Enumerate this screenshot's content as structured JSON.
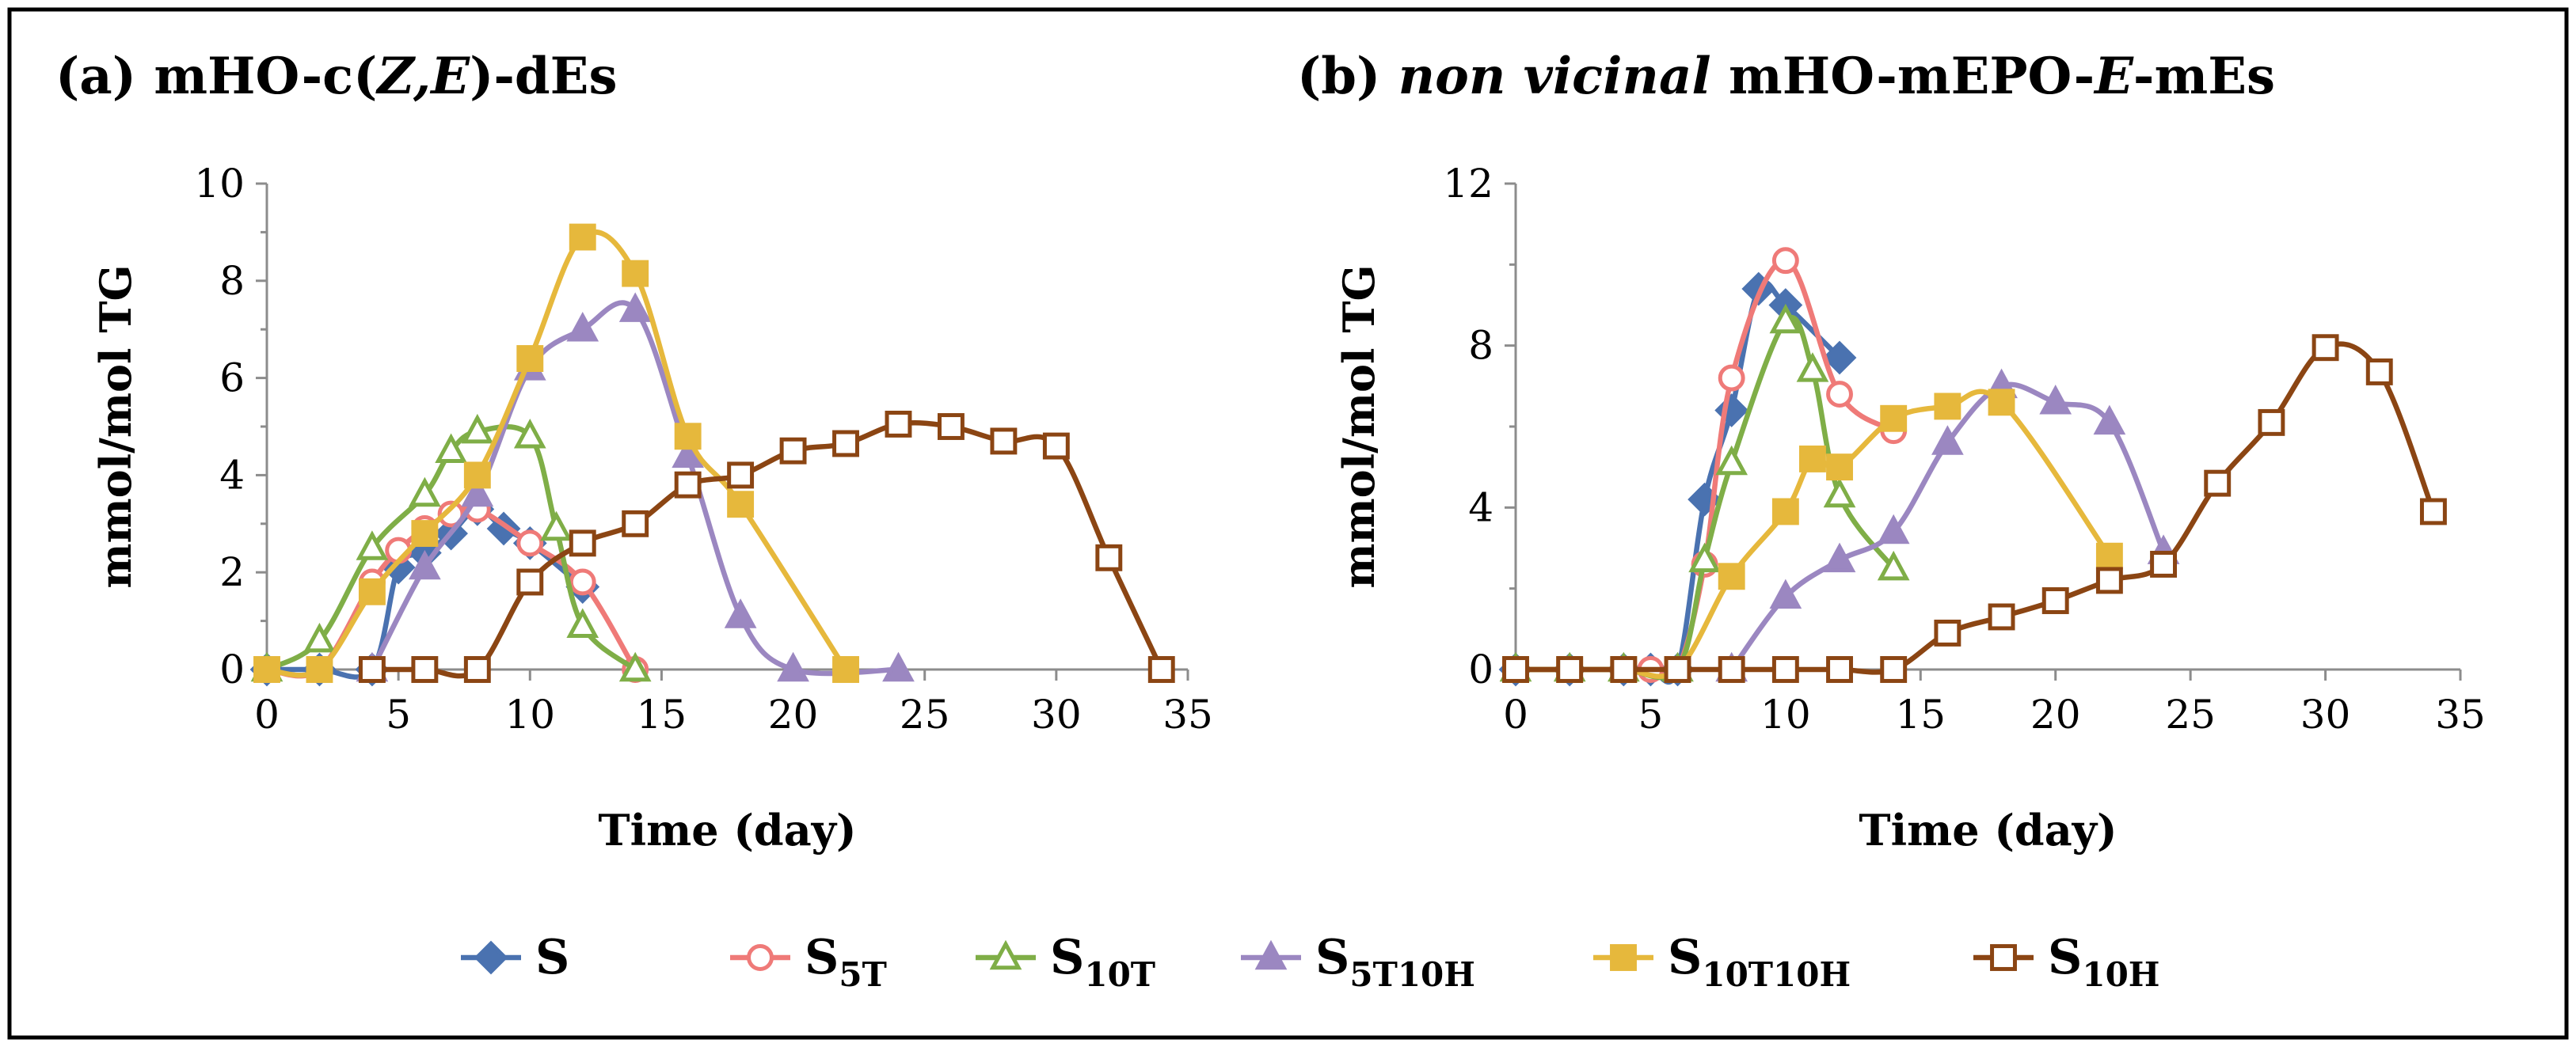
{
  "chart_data": [
    {
      "type": "line",
      "id": "a",
      "title_parts": [
        {
          "text": "(a) mHO-c(",
          "italic": false
        },
        {
          "text": "Z,E",
          "italic": true
        },
        {
          "text": ")-dEs",
          "italic": false
        }
      ],
      "xlabel": "Time (day)",
      "ylabel": "mmol/mol TG",
      "xlim": [
        0,
        35
      ],
      "ylim": [
        0,
        10
      ],
      "xticks": [
        0,
        5,
        10,
        15,
        20,
        25,
        30,
        35
      ],
      "yticks": [
        0,
        2,
        4,
        6,
        8,
        10
      ],
      "series": [
        {
          "key": "S",
          "x": [
            0,
            2,
            4,
            5,
            6,
            7,
            8,
            9,
            10,
            12
          ],
          "y": [
            0,
            0,
            0,
            2.1,
            2.4,
            2.8,
            3.3,
            2.9,
            2.6,
            1.7
          ]
        },
        {
          "key": "S5T",
          "x": [
            0,
            2,
            4,
            5,
            6,
            7,
            8,
            10,
            12,
            14
          ],
          "y": [
            0,
            0,
            1.8,
            2.45,
            2.9,
            3.2,
            3.3,
            2.6,
            1.8,
            0
          ]
        },
        {
          "key": "S10T",
          "x": [
            0,
            2,
            4,
            6,
            7,
            8,
            10,
            11,
            12,
            14
          ],
          "y": [
            0,
            0.6,
            2.5,
            3.6,
            4.5,
            4.9,
            4.8,
            2.9,
            0.9,
            0
          ]
        },
        {
          "key": "S5T10H",
          "x": [
            4,
            6,
            8,
            10,
            12,
            14,
            16,
            18,
            20,
            24
          ],
          "y": [
            0,
            2.1,
            3.6,
            6.2,
            7.0,
            7.4,
            4.4,
            1.1,
            0,
            0
          ]
        },
        {
          "key": "S10T10H",
          "x": [
            0,
            2,
            4,
            6,
            8,
            10,
            12,
            14,
            16,
            18,
            22
          ],
          "y": [
            0,
            0,
            1.6,
            2.8,
            4.0,
            6.4,
            8.9,
            8.15,
            4.8,
            3.4,
            0
          ]
        },
        {
          "key": "S10H",
          "x": [
            4,
            6,
            8,
            10,
            12,
            14,
            16,
            18,
            20,
            22,
            24,
            26,
            28,
            30,
            32,
            34
          ],
          "y": [
            0,
            0,
            0,
            1.8,
            2.6,
            3.0,
            3.8,
            4.0,
            4.5,
            4.65,
            5.05,
            5.0,
            4.7,
            4.6,
            2.3,
            0
          ]
        }
      ]
    },
    {
      "type": "line",
      "id": "b",
      "title_parts": [
        {
          "text": "(b) ",
          "italic": false
        },
        {
          "text": "non vicinal",
          "italic": true
        },
        {
          "text": " mHO-mEPO-",
          "italic": false
        },
        {
          "text": "E",
          "italic": true
        },
        {
          "text": "-mEs",
          "italic": false
        }
      ],
      "xlabel": "Time (day)",
      "ylabel": "mmol/mol TG",
      "xlim": [
        0,
        35
      ],
      "ylim": [
        0,
        12
      ],
      "xticks": [
        0,
        5,
        10,
        15,
        20,
        25,
        30,
        35
      ],
      "yticks": [
        0,
        4,
        8,
        12
      ],
      "series": [
        {
          "key": "S",
          "x": [
            0,
            2,
            4,
            5,
            6,
            7,
            8,
            9,
            10,
            12
          ],
          "y": [
            0,
            0,
            0,
            0,
            0,
            4.2,
            6.4,
            9.4,
            9.0,
            7.7
          ]
        },
        {
          "key": "S5T",
          "x": [
            0,
            2,
            4,
            5,
            6,
            7,
            8,
            10,
            12,
            14
          ],
          "y": [
            0,
            0,
            0,
            0,
            0,
            2.6,
            7.2,
            10.1,
            6.8,
            5.9
          ]
        },
        {
          "key": "S10T",
          "x": [
            0,
            2,
            4,
            6,
            7,
            8,
            10,
            11,
            12,
            14
          ],
          "y": [
            0,
            0,
            0,
            0,
            2.7,
            5.1,
            8.6,
            7.4,
            4.3,
            2.5
          ]
        },
        {
          "key": "S5T10H",
          "x": [
            8,
            10,
            12,
            14,
            16,
            18,
            20,
            22,
            24
          ],
          "y": [
            0,
            1.8,
            2.7,
            3.4,
            5.6,
            7.0,
            6.6,
            6.1,
            2.9
          ]
        },
        {
          "key": "S10T10H",
          "x": [
            0,
            2,
            4,
            6,
            8,
            10,
            11,
            12,
            14,
            16,
            18,
            22
          ],
          "y": [
            0,
            0,
            0,
            0,
            2.3,
            3.9,
            5.2,
            5.0,
            6.2,
            6.5,
            6.6,
            2.8
          ]
        },
        {
          "key": "S10H",
          "x": [
            0,
            2,
            4,
            6,
            8,
            10,
            12,
            14,
            16,
            18,
            20,
            22,
            24,
            26,
            28,
            30,
            32,
            34
          ],
          "y": [
            0,
            0,
            0,
            0,
            0,
            0,
            0,
            0,
            0.9,
            1.3,
            1.7,
            2.2,
            2.6,
            4.6,
            6.1,
            7.95,
            7.35,
            3.9
          ]
        }
      ]
    }
  ],
  "legend": [
    {
      "key": "S",
      "main": "S",
      "sub": "",
      "color": "#4a72b0",
      "marker": "diamond",
      "filled": true
    },
    {
      "key": "S5T",
      "main": "S",
      "sub": "5T",
      "color": "#ef7a78",
      "marker": "circle",
      "filled": false
    },
    {
      "key": "S10T",
      "main": "S",
      "sub": "10T",
      "color": "#7fae47",
      "marker": "triangle",
      "filled": false
    },
    {
      "key": "S5T10H",
      "main": "S",
      "sub": "5T10H",
      "color": "#9b87c1",
      "marker": "triangle",
      "filled": true
    },
    {
      "key": "S10T10H",
      "main": "S",
      "sub": "10T10H",
      "color": "#e6b83c",
      "marker": "square",
      "filled": true
    },
    {
      "key": "S10H",
      "main": "S",
      "sub": "10H",
      "color": "#8b4513",
      "marker": "square",
      "filled": false
    }
  ]
}
